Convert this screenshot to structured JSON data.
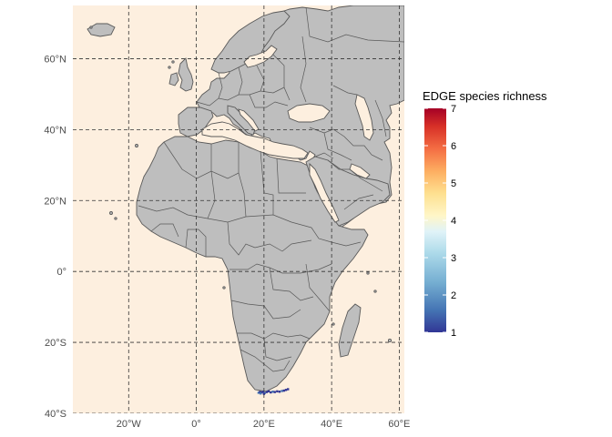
{
  "map": {
    "background_color": "#fdefdf",
    "land_color": "#bebebe",
    "border_color": "#595959",
    "grid_color": "#333333",
    "lat_ticks": [
      {
        "value": 60,
        "label": "60°N"
      },
      {
        "value": 40,
        "label": "40°N"
      },
      {
        "value": 20,
        "label": "20°N"
      },
      {
        "value": 0,
        "label": "0°"
      },
      {
        "value": -20,
        "label": "20°S"
      },
      {
        "value": -40,
        "label": "40°S"
      }
    ],
    "lon_ticks": [
      {
        "value": -20,
        "label": "20°W"
      },
      {
        "value": 0,
        "label": "0°"
      },
      {
        "value": 20,
        "label": "20°E"
      },
      {
        "value": 40,
        "label": "40°E"
      },
      {
        "value": 60,
        "label": "60°E"
      }
    ],
    "lon_range": [
      -36.5,
      61.5
    ],
    "lat_range": [
      -40,
      75
    ]
  },
  "legend": {
    "title": "EDGE species richness",
    "min": 1,
    "max": 7,
    "ticks": [
      "1",
      "2",
      "3",
      "4",
      "5",
      "6",
      "7"
    ],
    "colors": [
      "#313695",
      "#4575b4",
      "#74add1",
      "#abd9e9",
      "#e0f3f8",
      "#ffffbf",
      "#fee090",
      "#fdae61",
      "#f46d43",
      "#d73027",
      "#a50026"
    ]
  },
  "richness_points_note_free": true
}
